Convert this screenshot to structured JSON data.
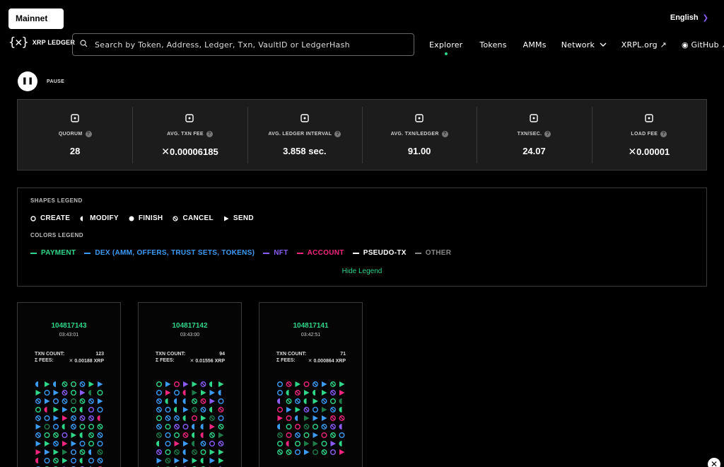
{
  "network": "Mainnet",
  "language": "English",
  "logo_text": "XRP LEDGER",
  "search": {
    "placeholder": "Search by Token, Address, Ledger, Txn, VaultID or LedgerHash"
  },
  "nav": [
    "Explorer",
    "Tokens",
    "AMMs",
    "Network",
    "XRPL.org",
    "GitHub"
  ],
  "pause_label": "PAUSE",
  "stats": [
    {
      "label": "QUORUM",
      "value": "28",
      "icon": "people-icon",
      "xrp": false
    },
    {
      "label": "AVG. TXN FEE",
      "value": "0.00006185",
      "icon": "cash-icon",
      "xrp": true
    },
    {
      "label": "AVG. LEDGER INTERVAL",
      "value": "3.858 sec.",
      "icon": "clock-icon",
      "xrp": false
    },
    {
      "label": "AVG. TXN/LEDGER",
      "value": "91.00",
      "icon": "cube-icon",
      "xrp": false
    },
    {
      "label": "TXN/SEC.",
      "value": "24.07",
      "icon": "clock-icon",
      "xrp": false
    },
    {
      "label": "LOAD FEE",
      "value": "0.00001",
      "icon": "coins-icon",
      "xrp": true
    }
  ],
  "legend": {
    "shapes_title": "SHAPES LEGEND",
    "shapes": [
      "CREATE",
      "MODIFY",
      "FINISH",
      "CANCEL",
      "SEND"
    ],
    "colors_title": "COLORS LEGEND",
    "colors": [
      {
        "label": "PAYMENT",
        "color": "#2ed68a"
      },
      {
        "label": "DEX (AMM, OFFERS, TRUST SETS, TOKENS)",
        "color": "#3b9cf5"
      },
      {
        "label": "NFT",
        "color": "#8b5cf6"
      },
      {
        "label": "ACCOUNT",
        "color": "#f0257f"
      },
      {
        "label": "PSEUDO-TX",
        "color": "#ffffff"
      },
      {
        "label": "OTHER",
        "color": "#888888"
      }
    ],
    "hide_label": "Hide Legend"
  },
  "ledgers": [
    {
      "index": "104817143",
      "time": "03:43:01",
      "txn_count_label": "TXN COUNT:",
      "txn_count": "123",
      "fees_label": "Σ FEES:",
      "fees": "0.00188 XRP"
    },
    {
      "index": "104817142",
      "time": "03:43:00",
      "txn_count_label": "TXN COUNT:",
      "txn_count": "94",
      "fees_label": "Σ FEES:",
      "fees": "0.01556 XRP"
    },
    {
      "index": "104817141",
      "time": "03:42:51",
      "txn_count_label": "TXN COUNT:",
      "txn_count": "71",
      "fees_label": "Σ FEES:",
      "fees": "0.000864 XRP"
    }
  ]
}
